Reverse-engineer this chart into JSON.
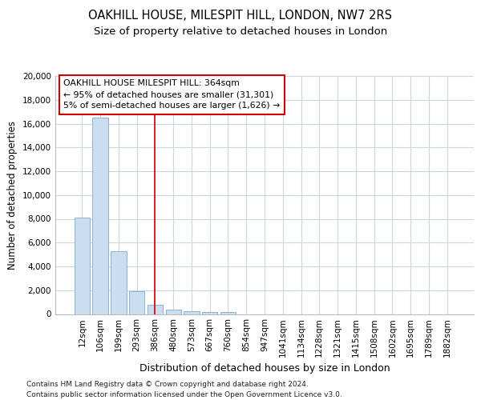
{
  "title1": "OAKHILL HOUSE, MILESPIT HILL, LONDON, NW7 2RS",
  "title2": "Size of property relative to detached houses in London",
  "xlabel": "Distribution of detached houses by size in London",
  "ylabel": "Number of detached properties",
  "categories": [
    "12sqm",
    "106sqm",
    "199sqm",
    "293sqm",
    "386sqm",
    "480sqm",
    "573sqm",
    "667sqm",
    "760sqm",
    "854sqm",
    "947sqm",
    "1041sqm",
    "1134sqm",
    "1228sqm",
    "1321sqm",
    "1415sqm",
    "1508sqm",
    "1602sqm",
    "1695sqm",
    "1789sqm",
    "1882sqm"
  ],
  "values": [
    8100,
    16500,
    5300,
    1900,
    800,
    350,
    250,
    200,
    150,
    0,
    0,
    0,
    0,
    0,
    0,
    0,
    0,
    0,
    0,
    0,
    0
  ],
  "bar_color": "#ccddf0",
  "bar_edgecolor": "#8ab4d4",
  "redline_index": 4,
  "annotation_line1": "OAKHILL HOUSE MILESPIT HILL: 364sqm",
  "annotation_line2": "← 95% of detached houses are smaller (31,301)",
  "annotation_line3": "5% of semi-detached houses are larger (1,626) →",
  "ylim": [
    0,
    20000
  ],
  "yticks": [
    0,
    2000,
    4000,
    6000,
    8000,
    10000,
    12000,
    14000,
    16000,
    18000,
    20000
  ],
  "footer1": "Contains HM Land Registry data © Crown copyright and database right 2024.",
  "footer2": "Contains public sector information licensed under the Open Government Licence v3.0.",
  "background_color": "#ffffff",
  "grid_color": "#c8d8ea",
  "title1_fontsize": 10.5,
  "title2_fontsize": 9.5,
  "xlabel_fontsize": 9,
  "ylabel_fontsize": 8.5,
  "tick_fontsize": 7.5,
  "annot_fontsize": 7.8,
  "footer_fontsize": 6.5
}
